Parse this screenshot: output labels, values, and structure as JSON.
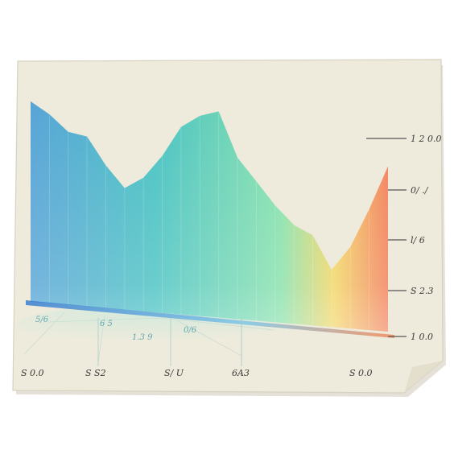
{
  "chart_data": {
    "type": "area",
    "title": "",
    "xlabel": "",
    "ylabel": "",
    "x_tick_labels": [
      "S 0.0",
      "S S2",
      "S/ U",
      "6A3",
      "S 0.0"
    ],
    "y_tick_labels": [
      "1 2 0.0",
      "0/ ./",
      "l/ 6",
      "S 2.3",
      "1 0.0"
    ],
    "floor_labels": [
      "5/6",
      "6 5",
      "1.3 9",
      "0/6"
    ],
    "series": [
      {
        "values": [
          0.94,
          0.88,
          0.8,
          0.78,
          0.65,
          0.55,
          0.6,
          0.7,
          0.83,
          0.88,
          0.9,
          0.7,
          0.6,
          0.5,
          0.42,
          0.38,
          0.24,
          0.34,
          0.5,
          0.68
        ]
      }
    ],
    "ylim": [
      0,
      1
    ],
    "gradient": [
      "#4a9ed6",
      "#3cbfc0",
      "#7ee0a8",
      "#f3d45a",
      "#f2764e"
    ],
    "grid": false,
    "legend": "none"
  },
  "colors": {
    "paper": "#efebdc",
    "paper_edge": "#d7d1bf",
    "background": "#ffffff",
    "tick_text": "#3a3a3a",
    "floor_text": "#4a9aa8"
  }
}
